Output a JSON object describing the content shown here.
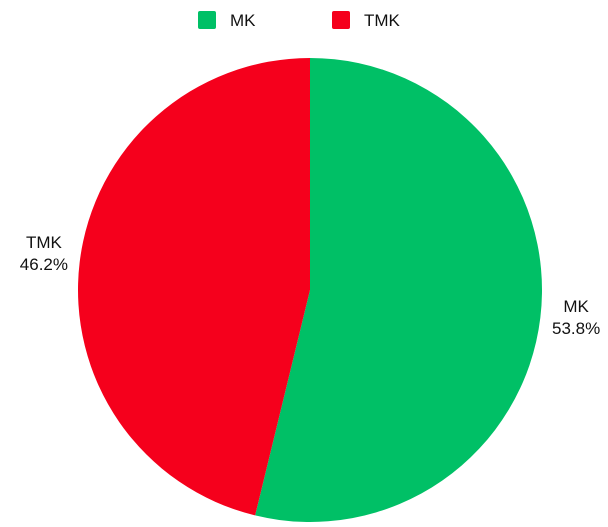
{
  "chart_data": {
    "type": "pie",
    "title": "",
    "legend_position": "top",
    "slices": [
      {
        "label": "MK",
        "value": 53.8,
        "display": "53.8%",
        "color": "#00c066"
      },
      {
        "label": "TMK",
        "value": 46.2,
        "display": "46.2%",
        "color": "#f5001c"
      }
    ]
  }
}
